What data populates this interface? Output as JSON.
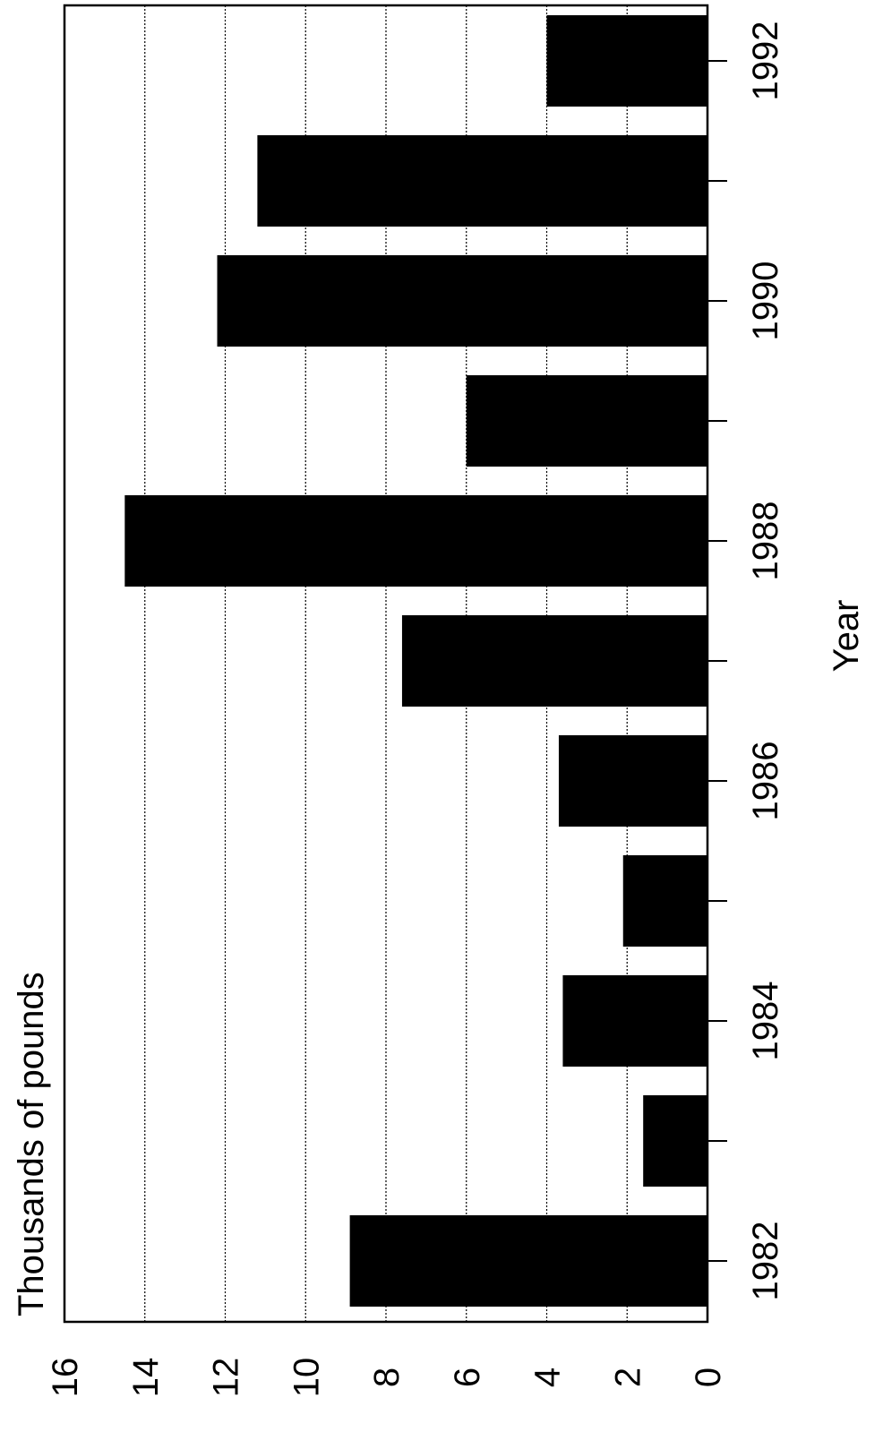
{
  "chart_data": {
    "type": "bar",
    "orientation": "rotated-90",
    "categories": [
      "1982",
      "1983",
      "1984",
      "1985",
      "1986",
      "1987",
      "1988",
      "1989",
      "1990",
      "1991",
      "1992"
    ],
    "values": [
      8.9,
      1.6,
      3.6,
      2.1,
      3.7,
      7.6,
      14.5,
      6.0,
      12.2,
      11.2,
      4.0
    ],
    "x_tick_labels": [
      "1982",
      "1984",
      "1986",
      "1988",
      "1990",
      "1992"
    ],
    "y_ticks": [
      0,
      2,
      4,
      6,
      8,
      10,
      12,
      14,
      16
    ],
    "ylim": [
      0,
      16
    ],
    "xlabel": "Year",
    "ylabel": "Thousands of pounds",
    "title": "",
    "grid": true,
    "bar_color": "#000000"
  }
}
